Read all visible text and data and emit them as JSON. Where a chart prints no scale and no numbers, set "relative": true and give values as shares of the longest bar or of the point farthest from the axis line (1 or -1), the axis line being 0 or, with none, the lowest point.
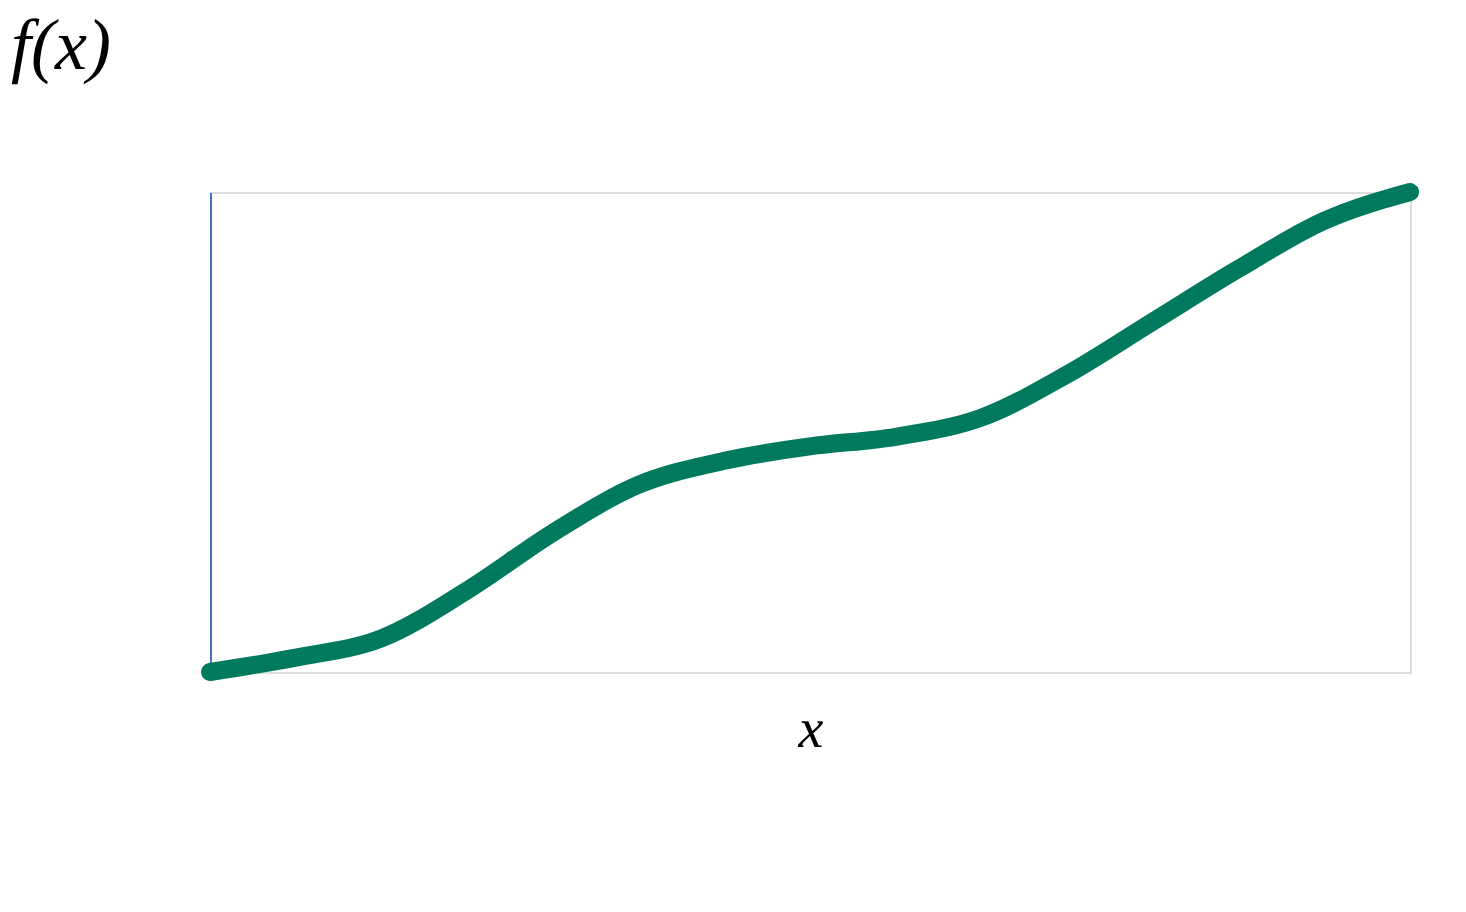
{
  "chart_data": {
    "type": "line",
    "relative": true,
    "xlabel": "x",
    "ylabel": "f(x)",
    "categories": [
      null,
      null,
      null,
      null,
      null,
      null,
      null,
      null,
      null,
      null,
      null,
      null,
      null,
      null,
      null
    ],
    "series": [
      {
        "color": "#007a5e",
        "values": [
          0,
          0.03,
          0.07,
          0.17,
          0.29,
          0.39,
          0.44,
          0.47,
          0.49,
          0.53,
          0.62,
          0.73,
          0.84,
          0.94,
          1.0
        ]
      }
    ],
    "grid": false,
    "line_style": "solid"
  }
}
